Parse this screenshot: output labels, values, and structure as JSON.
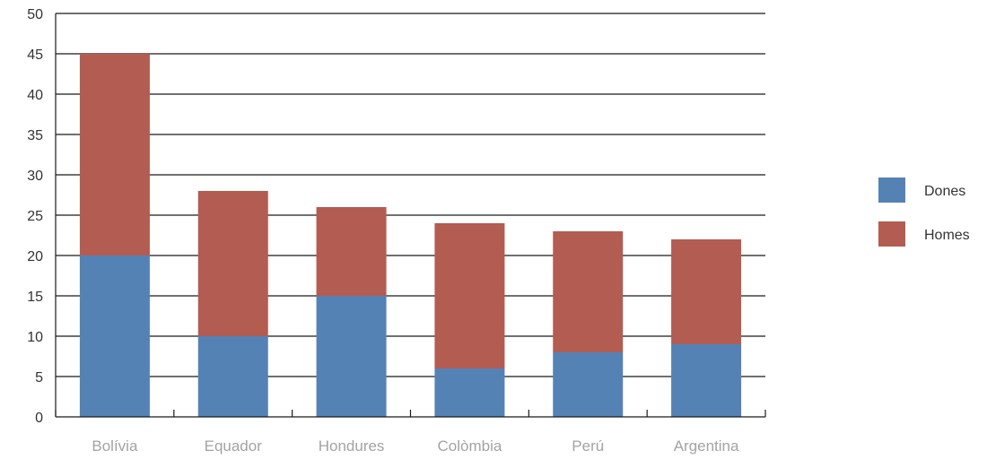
{
  "chart_data": {
    "type": "bar",
    "stacked": true,
    "title": "",
    "xlabel": "",
    "ylabel": "",
    "categories": [
      "Bolívia",
      "Equador",
      "Hondures",
      "Colòmbia",
      "Perú",
      "Argentina"
    ],
    "series": [
      {
        "name": "Dones",
        "color": "#5582b5",
        "values": [
          20,
          10,
          15,
          6,
          8,
          9
        ]
      },
      {
        "name": "Homes",
        "color": "#b35c52",
        "values": [
          25,
          18,
          11,
          18,
          15,
          13
        ]
      }
    ],
    "ylim": [
      0,
      50
    ],
    "yticks": [
      0,
      5,
      10,
      15,
      20,
      25,
      30,
      35,
      40,
      45,
      50
    ],
    "grid": true,
    "legend_position": "right"
  }
}
